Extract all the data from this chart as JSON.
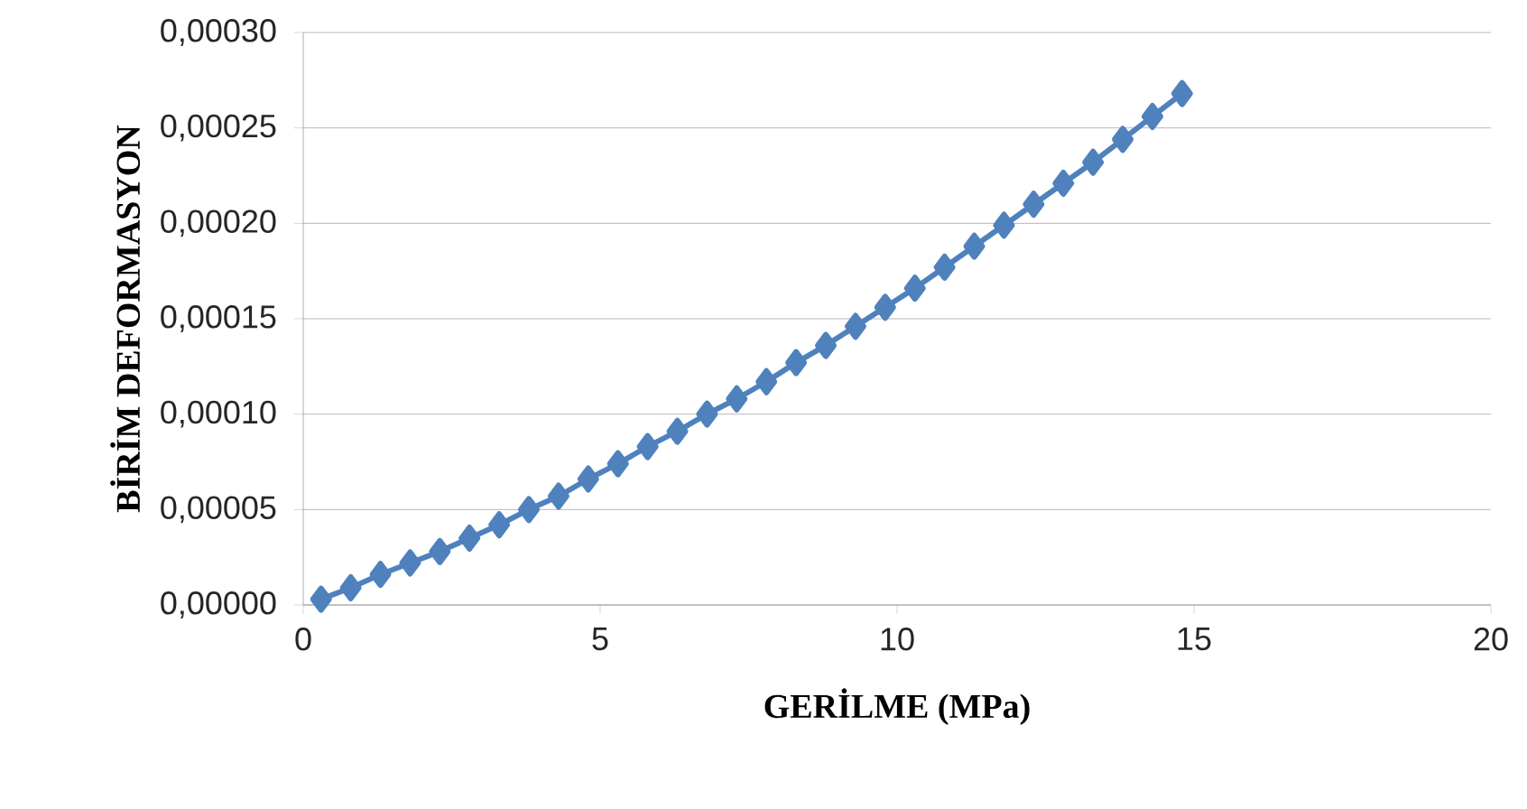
{
  "chart_data": {
    "type": "line",
    "xlabel": "GERİLME (MPa)",
    "ylabel": "BİRİM DEFORMASYON",
    "series": [
      {
        "color": "#4f81bd",
        "x": [
          0.3,
          0.8,
          1.3,
          1.8,
          2.3,
          2.8,
          3.3,
          3.8,
          4.3,
          4.8,
          5.3,
          5.8,
          6.3,
          6.8,
          7.3,
          7.8,
          8.3,
          8.8,
          9.3,
          9.8,
          10.3,
          10.8,
          11.3,
          11.8,
          12.3,
          12.8,
          13.3,
          13.8,
          14.3,
          14.8
        ],
        "values": [
          3e-06,
          9e-06,
          1.6e-05,
          2.2e-05,
          2.8e-05,
          3.5e-05,
          4.2e-05,
          5e-05,
          5.7e-05,
          6.6e-05,
          7.4e-05,
          8.3e-05,
          9.1e-05,
          0.0001,
          0.000108,
          0.000117,
          0.000127,
          0.000136,
          0.000146,
          0.000156,
          0.000166,
          0.000177,
          0.000188,
          0.000199,
          0.00021,
          0.000221,
          0.000232,
          0.000244,
          0.000256,
          0.000268
        ]
      }
    ],
    "xlim": [
      0,
      20
    ],
    "xticks": [
      0,
      5,
      10,
      15,
      20
    ],
    "ylim": [
      0,
      0.0003
    ],
    "yticks": [
      {
        "value": 0,
        "label": "0,00000"
      },
      {
        "value": 5e-05,
        "label": "0,00005"
      },
      {
        "value": 0.0001,
        "label": "0,00010"
      },
      {
        "value": 0.00015,
        "label": "0,00015"
      },
      {
        "value": 0.0002,
        "label": "0,00020"
      },
      {
        "value": 0.00025,
        "label": "0,00025"
      },
      {
        "value": 0.0003,
        "label": "0,00030"
      }
    ],
    "grid": "y",
    "marker": "diamond",
    "line_style": "solid"
  }
}
